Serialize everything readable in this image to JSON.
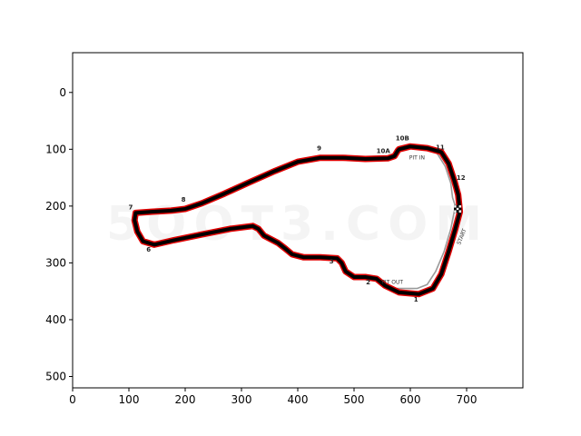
{
  "figure": {
    "xlim": [
      0,
      800
    ],
    "ylim": [
      520,
      -70
    ],
    "x_ticks": [
      0,
      100,
      200,
      300,
      400,
      500,
      600,
      700
    ],
    "y_ticks": [
      0,
      100,
      200,
      300,
      400,
      500
    ],
    "grid": false
  },
  "track": {
    "colors": {
      "racing_line": "#000000",
      "outline": "#e00000",
      "pit_lane": "#9a9a9a"
    },
    "centerline": [
      [
        580,
        100
      ],
      [
        600,
        95
      ],
      [
        630,
        98
      ],
      [
        655,
        105
      ],
      [
        668,
        125
      ],
      [
        678,
        155
      ],
      [
        685,
        180
      ],
      [
        688,
        210
      ],
      [
        680,
        240
      ],
      [
        668,
        280
      ],
      [
        655,
        320
      ],
      [
        640,
        345
      ],
      [
        615,
        355
      ],
      [
        580,
        352
      ],
      [
        555,
        340
      ],
      [
        540,
        328
      ],
      [
        520,
        325
      ],
      [
        500,
        325
      ],
      [
        485,
        315
      ],
      [
        478,
        300
      ],
      [
        470,
        292
      ],
      [
        440,
        290
      ],
      [
        410,
        290
      ],
      [
        390,
        285
      ],
      [
        378,
        275
      ],
      [
        365,
        265
      ],
      [
        340,
        252
      ],
      [
        330,
        240
      ],
      [
        320,
        235
      ],
      [
        280,
        240
      ],
      [
        230,
        250
      ],
      [
        180,
        260
      ],
      [
        145,
        268
      ],
      [
        125,
        262
      ],
      [
        115,
        245
      ],
      [
        110,
        225
      ],
      [
        112,
        212
      ],
      [
        140,
        210
      ],
      [
        175,
        208
      ],
      [
        200,
        205
      ],
      [
        230,
        195
      ],
      [
        270,
        178
      ],
      [
        310,
        160
      ],
      [
        360,
        138
      ],
      [
        400,
        122
      ],
      [
        440,
        115
      ],
      [
        480,
        115
      ],
      [
        520,
        117
      ],
      [
        560,
        116
      ],
      [
        572,
        112
      ],
      [
        578,
        102
      ],
      [
        580,
        100
      ]
    ],
    "pit_lane": [
      [
        648,
        108
      ],
      [
        662,
        130
      ],
      [
        672,
        160
      ],
      [
        675,
        185
      ],
      [
        680,
        200
      ],
      [
        672,
        240
      ],
      [
        660,
        280
      ],
      [
        645,
        315
      ],
      [
        630,
        338
      ],
      [
        612,
        345
      ],
      [
        575,
        345
      ]
    ],
    "corner_labels": [
      {
        "text": "1",
        "x": 610,
        "y": 368
      },
      {
        "text": "2",
        "x": 525,
        "y": 338
      },
      {
        "text": "3",
        "x": 460,
        "y": 301
      },
      {
        "text": "6",
        "x": 135,
        "y": 280
      },
      {
        "text": "7",
        "x": 103,
        "y": 206
      },
      {
        "text": "8",
        "x": 197,
        "y": 192
      },
      {
        "text": "9",
        "x": 438,
        "y": 102
      },
      {
        "text": "10A",
        "x": 552,
        "y": 107
      },
      {
        "text": "10B",
        "x": 586,
        "y": 84
      },
      {
        "text": "11",
        "x": 653,
        "y": 100
      },
      {
        "text": "12",
        "x": 690,
        "y": 154
      }
    ],
    "annotations": [
      {
        "text": "PIT IN",
        "x": 612,
        "y": 118
      },
      {
        "text": "PIT OUT",
        "x": 568,
        "y": 337
      },
      {
        "text": "START",
        "x": 694,
        "y": 255
      }
    ],
    "watermark": "5OOT3.COM"
  }
}
